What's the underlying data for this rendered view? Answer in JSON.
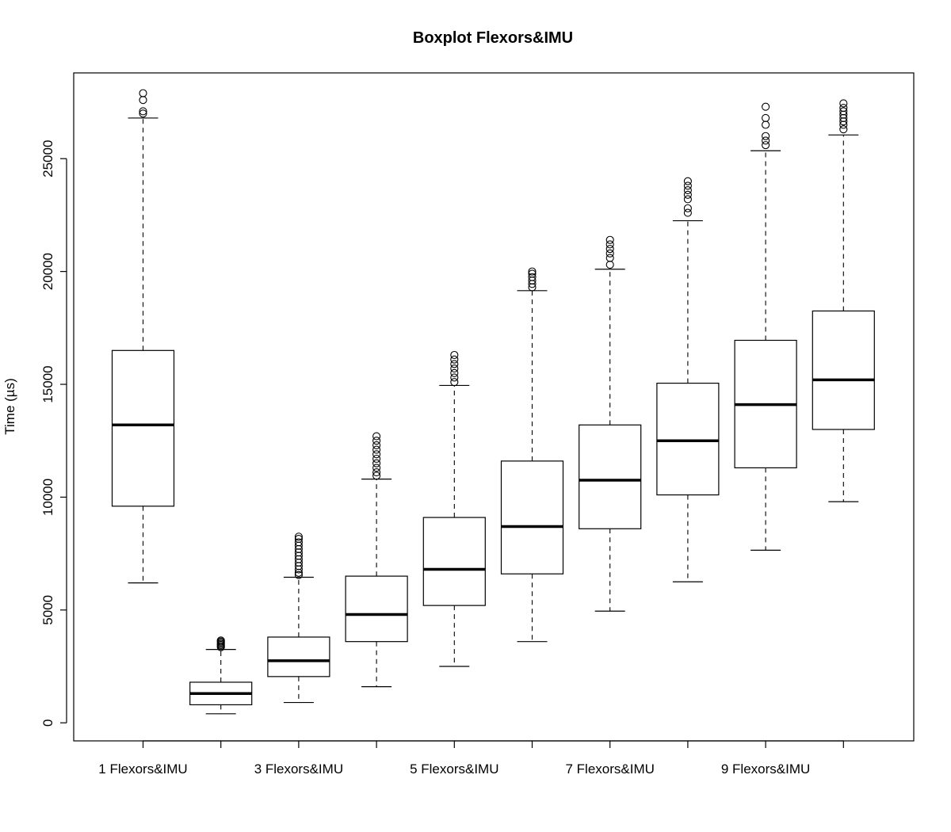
{
  "chart_data": {
    "type": "boxplot",
    "title": "Boxplot Flexors&IMU",
    "xlabel": "",
    "ylabel": "Time (µs)",
    "ylim": [
      -800,
      28800
    ],
    "y_ticks": [
      0,
      5000,
      10000,
      15000,
      20000,
      25000
    ],
    "x_tick_labels": [
      "1 Flexors&IMU",
      "",
      "3 Flexors&IMU",
      "",
      "5 Flexors&IMU",
      "",
      "7 Flexors&IMU",
      "",
      "9 Flexors&IMU",
      ""
    ],
    "series": [
      {
        "whisker_low": 6200,
        "q1": 9600,
        "median": 13200,
        "q3": 16500,
        "whisker_high": 26800,
        "outliers": [
          27000,
          27100,
          27600,
          27900
        ]
      },
      {
        "whisker_low": 400,
        "q1": 800,
        "median": 1300,
        "q3": 1800,
        "whisker_high": 3250,
        "outliers": [
          3350,
          3400,
          3450,
          3500,
          3550,
          3600,
          3650
        ]
      },
      {
        "whisker_low": 900,
        "q1": 2050,
        "median": 2750,
        "q3": 3800,
        "whisker_high": 6450,
        "outliers": [
          6550,
          6650,
          6800,
          6950,
          7100,
          7250,
          7400,
          7550,
          7700,
          7850,
          8000,
          8150,
          8250
        ]
      },
      {
        "whisker_low": 1600,
        "q1": 3600,
        "median": 4800,
        "q3": 6500,
        "whisker_high": 10800,
        "outliers": [
          10950,
          11100,
          11300,
          11500,
          11700,
          11900,
          12100,
          12300,
          12500,
          12700
        ]
      },
      {
        "whisker_low": 2500,
        "q1": 5200,
        "median": 6800,
        "q3": 9100,
        "whisker_high": 14950,
        "outliers": [
          15100,
          15300,
          15500,
          15700,
          15900,
          16100,
          16300
        ]
      },
      {
        "whisker_low": 3600,
        "q1": 6600,
        "median": 8700,
        "q3": 11600,
        "whisker_high": 19150,
        "outliers": [
          19300,
          19450,
          19600,
          19750,
          19900,
          20000
        ]
      },
      {
        "whisker_low": 4950,
        "q1": 8600,
        "median": 10750,
        "q3": 13200,
        "whisker_high": 20100,
        "outliers": [
          20300,
          20600,
          20800,
          21000,
          21200,
          21400
        ]
      },
      {
        "whisker_low": 6250,
        "q1": 10100,
        "median": 12500,
        "q3": 15050,
        "whisker_high": 22250,
        "outliers": [
          22600,
          22800,
          23200,
          23400,
          23600,
          23800,
          24000
        ]
      },
      {
        "whisker_low": 7650,
        "q1": 11300,
        "median": 14100,
        "q3": 16950,
        "whisker_high": 25350,
        "outliers": [
          25600,
          25800,
          26000,
          26500,
          26800,
          27300
        ]
      },
      {
        "whisker_low": 9800,
        "q1": 13000,
        "median": 15200,
        "q3": 18250,
        "whisker_high": 26050,
        "outliers": [
          26300,
          26500,
          26650,
          26800,
          26950,
          27100,
          27250,
          27450
        ]
      }
    ]
  }
}
